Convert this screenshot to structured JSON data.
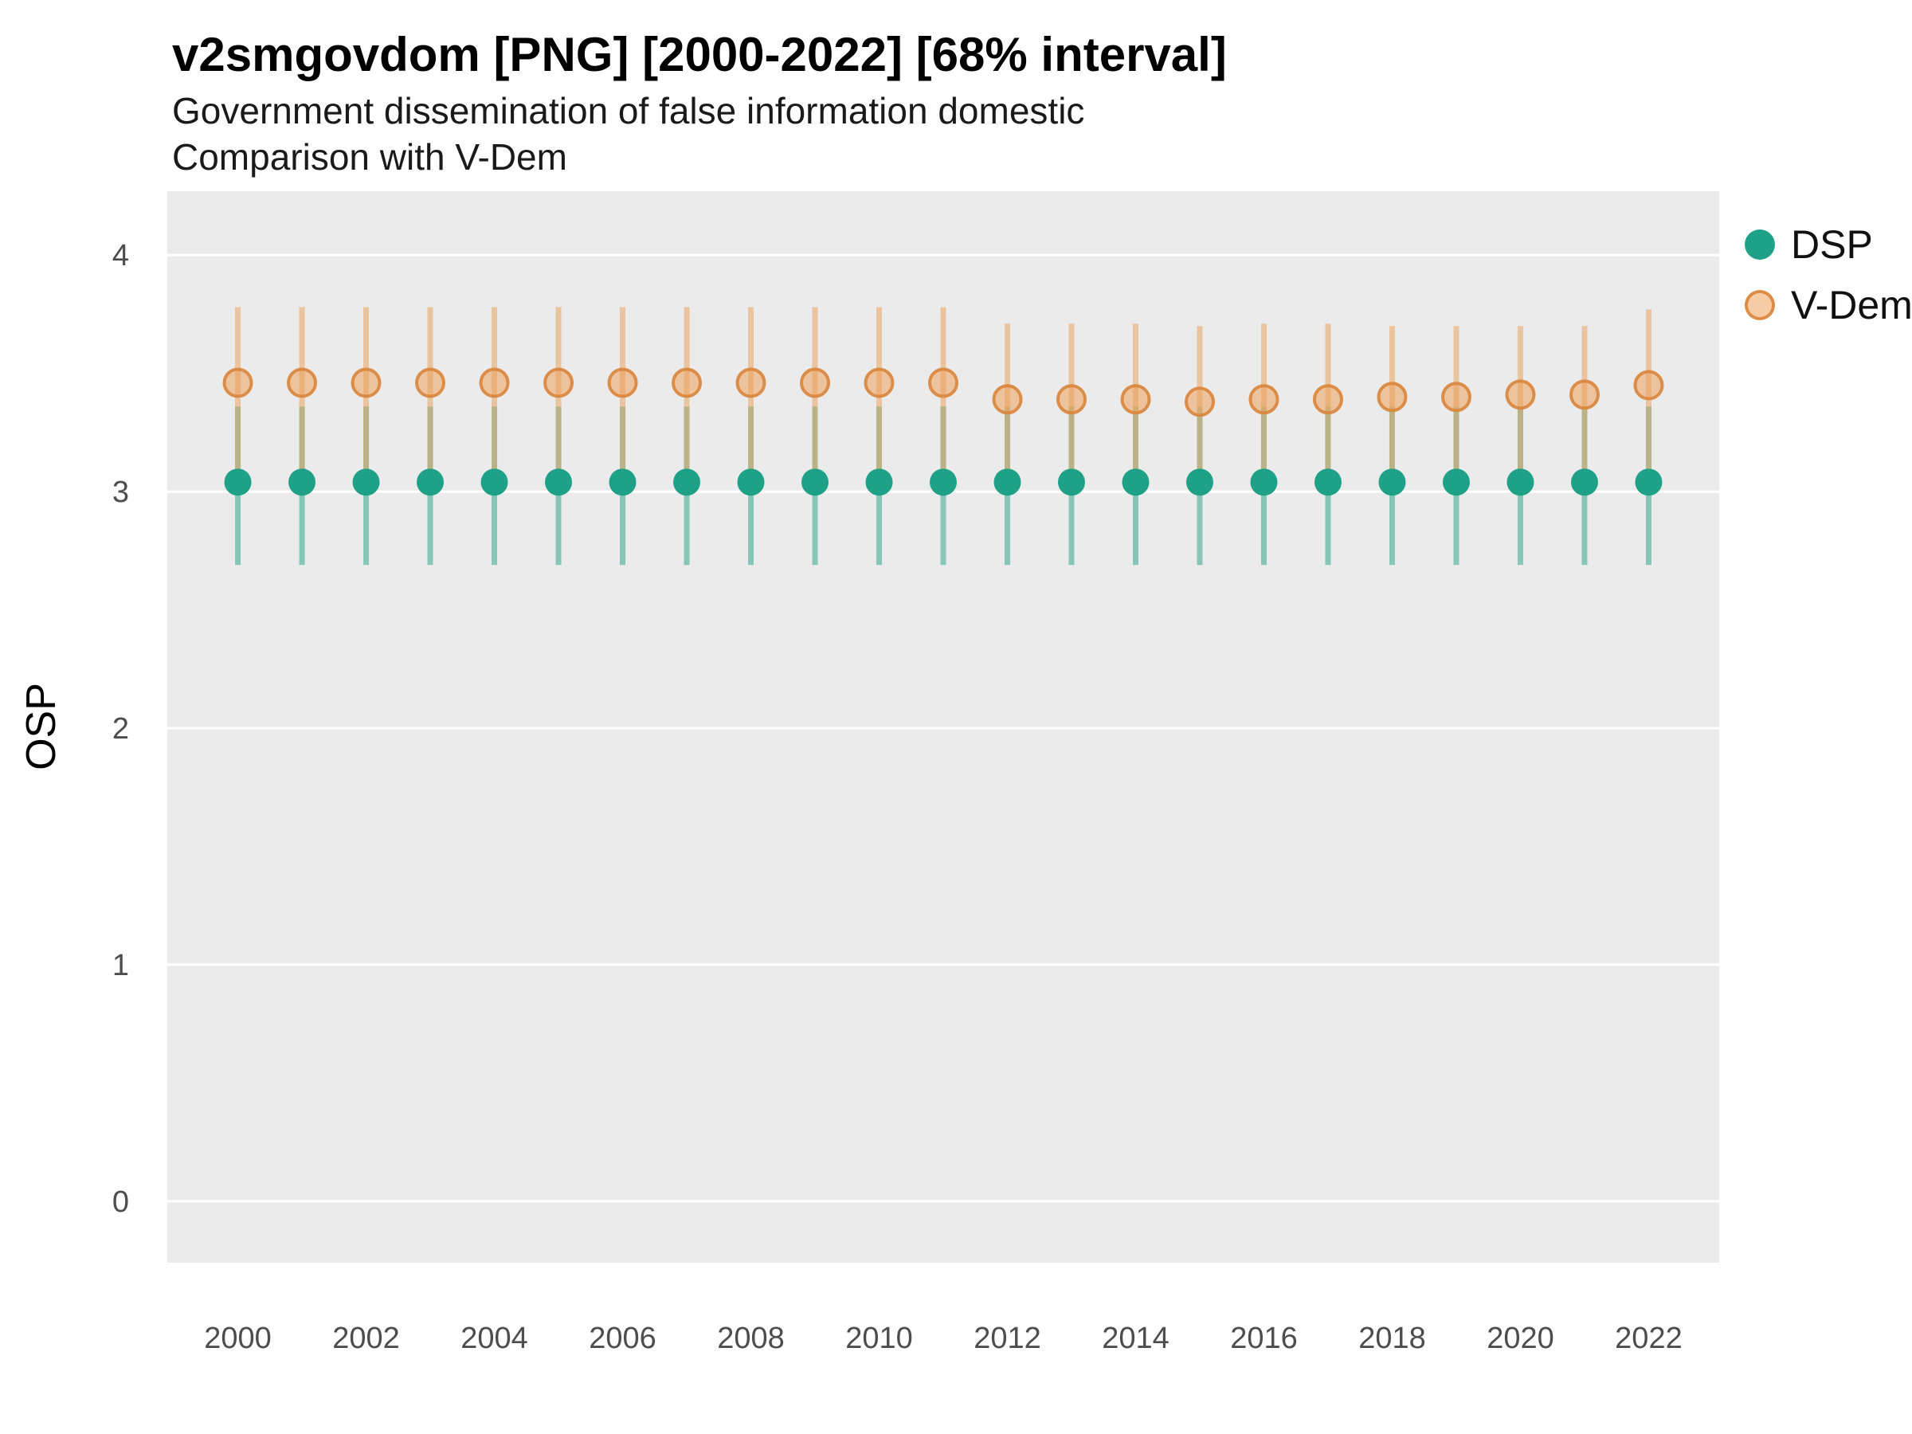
{
  "chart_data": {
    "type": "scatter",
    "mark": "pointrange",
    "title": "v2smgovdom [PNG] [2000-2022] [68% interval]",
    "subtitle": [
      "Government dissemination of false information domestic",
      "Comparison with V-Dem"
    ],
    "xlabel": "",
    "ylabel": "OSP",
    "interval": "68%",
    "legend_position": "right",
    "grid": "major-horizontal",
    "panel_bg": "#EBEBEB",
    "grid_color": "#FFFFFF",
    "axis_text_color": "#4D4D4D",
    "xlim": [
      1998.9,
      2023.1
    ],
    "ylim": [
      -0.26,
      4.27
    ],
    "x_ticks": [
      2000,
      2002,
      2004,
      2006,
      2008,
      2010,
      2012,
      2014,
      2016,
      2018,
      2020,
      2022
    ],
    "y_ticks": [
      0,
      1,
      2,
      3,
      4
    ],
    "x": [
      2000,
      2001,
      2002,
      2003,
      2004,
      2005,
      2006,
      2007,
      2008,
      2009,
      2010,
      2011,
      2012,
      2013,
      2014,
      2015,
      2016,
      2017,
      2018,
      2019,
      2020,
      2021,
      2022
    ],
    "series": [
      {
        "name": "DSP",
        "color": "#1FA187",
        "point_opacity": 1,
        "point_stroke": "none",
        "point_stroke_opacity": 1,
        "line_color": "#1FA187",
        "line_opacity": 0.5,
        "means": [
          3.04,
          3.04,
          3.04,
          3.04,
          3.04,
          3.04,
          3.04,
          3.04,
          3.04,
          3.04,
          3.04,
          3.04,
          3.04,
          3.04,
          3.04,
          3.04,
          3.04,
          3.04,
          3.04,
          3.04,
          3.04,
          3.04,
          3.04
        ],
        "lows": [
          2.69,
          2.69,
          2.69,
          2.69,
          2.69,
          2.69,
          2.69,
          2.69,
          2.69,
          2.69,
          2.69,
          2.69,
          2.69,
          2.69,
          2.69,
          2.69,
          2.69,
          2.69,
          2.69,
          2.69,
          2.69,
          2.69,
          2.69
        ],
        "highs": [
          3.36,
          3.36,
          3.36,
          3.36,
          3.36,
          3.36,
          3.36,
          3.36,
          3.36,
          3.36,
          3.36,
          3.36,
          3.36,
          3.36,
          3.36,
          3.36,
          3.36,
          3.36,
          3.36,
          3.36,
          3.36,
          3.36,
          3.36
        ]
      },
      {
        "name": "V-Dem",
        "color": "#EFA35C",
        "point_opacity": 0.55,
        "point_stroke": "#D9853B",
        "point_stroke_opacity": 0.9,
        "line_color": "#E8A45F",
        "line_opacity": 0.55,
        "means": [
          3.46,
          3.46,
          3.46,
          3.46,
          3.46,
          3.46,
          3.46,
          3.46,
          3.46,
          3.46,
          3.46,
          3.46,
          3.39,
          3.39,
          3.39,
          3.38,
          3.39,
          3.39,
          3.4,
          3.4,
          3.41,
          3.41,
          3.45
        ],
        "lows": [
          3.08,
          3.08,
          3.08,
          3.08,
          3.08,
          3.08,
          3.08,
          3.08,
          3.08,
          3.08,
          3.08,
          3.08,
          3.03,
          3.03,
          3.03,
          3.02,
          3.03,
          3.03,
          3.05,
          3.05,
          3.06,
          3.06,
          3.08
        ],
        "highs": [
          3.78,
          3.78,
          3.78,
          3.78,
          3.78,
          3.78,
          3.78,
          3.78,
          3.78,
          3.78,
          3.78,
          3.78,
          3.71,
          3.71,
          3.71,
          3.7,
          3.71,
          3.71,
          3.7,
          3.7,
          3.7,
          3.7,
          3.77
        ]
      }
    ]
  }
}
